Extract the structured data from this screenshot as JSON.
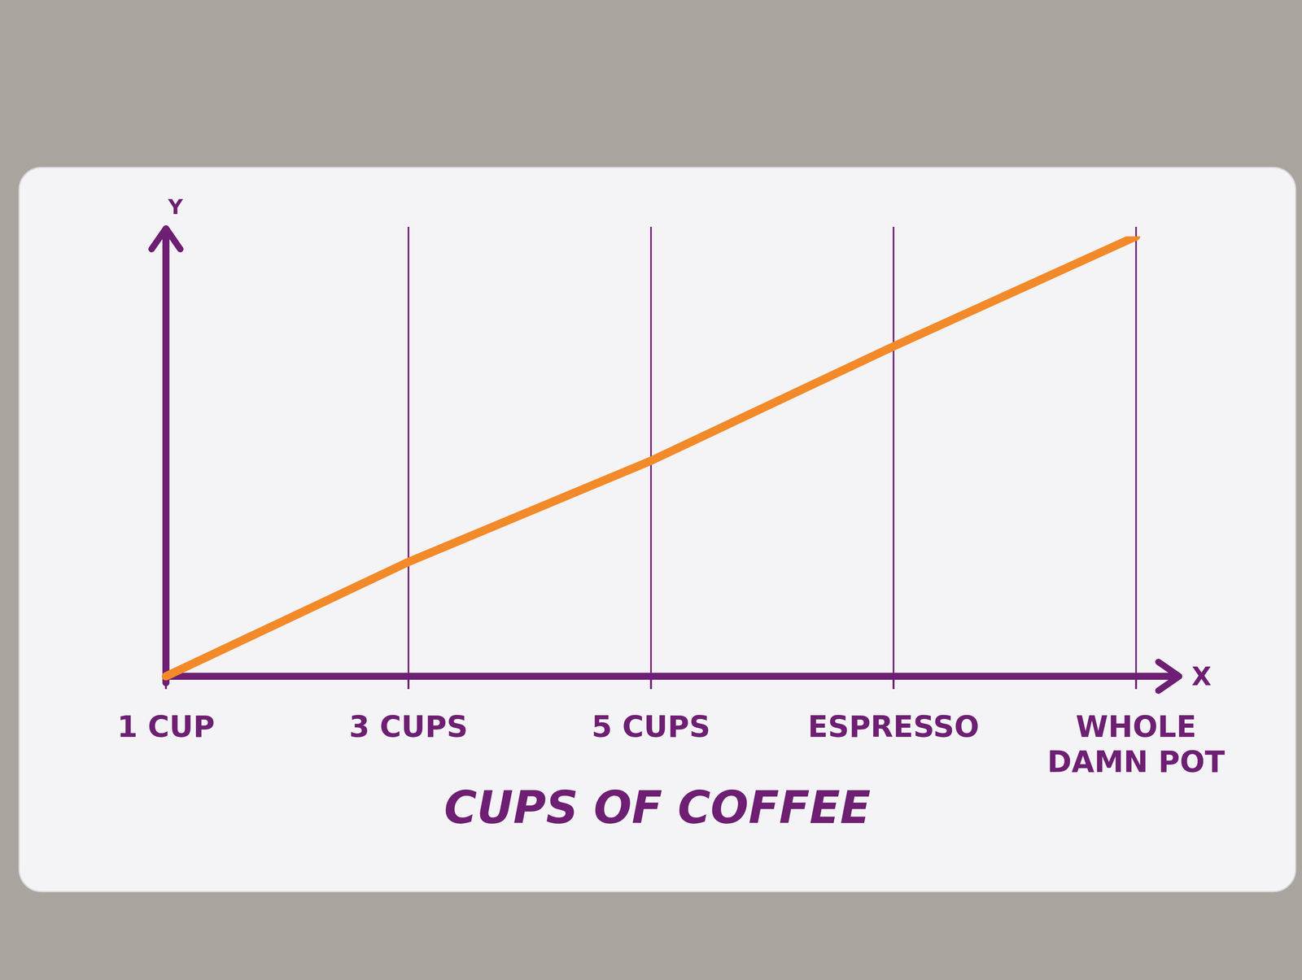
{
  "chart_data": {
    "type": "line",
    "categories": [
      "1 CUP",
      "3 CUPS",
      "5 CUPS",
      "ESPRESSO",
      "WHOLE DAMN POT"
    ],
    "values": [
      0,
      2.6,
      4.9,
      7.5,
      10
    ],
    "ylim": [
      0,
      10
    ],
    "x_label": "CUPS OF COFFEE",
    "x_axis_name": "X",
    "y_axis_name": "Y",
    "color": "#f28a2a",
    "grid": true,
    "tick_labels": "x"
  }
}
